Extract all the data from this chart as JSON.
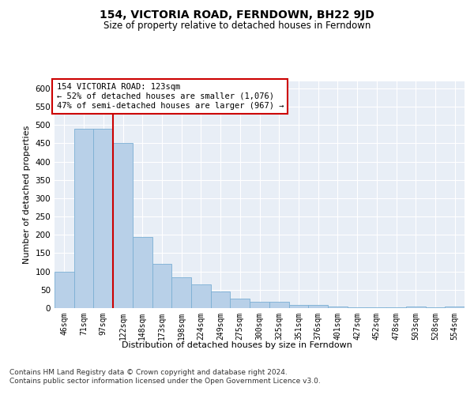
{
  "title": "154, VICTORIA ROAD, FERNDOWN, BH22 9JD",
  "subtitle": "Size of property relative to detached houses in Ferndown",
  "xlabel": "Distribution of detached houses by size in Ferndown",
  "ylabel": "Number of detached properties",
  "categories": [
    "46sqm",
    "71sqm",
    "97sqm",
    "122sqm",
    "148sqm",
    "173sqm",
    "198sqm",
    "224sqm",
    "249sqm",
    "275sqm",
    "300sqm",
    "325sqm",
    "351sqm",
    "376sqm",
    "401sqm",
    "427sqm",
    "452sqm",
    "478sqm",
    "503sqm",
    "528sqm",
    "554sqm"
  ],
  "values": [
    100,
    490,
    490,
    450,
    195,
    120,
    85,
    65,
    45,
    25,
    18,
    18,
    8,
    8,
    5,
    3,
    3,
    3,
    5,
    3,
    5
  ],
  "bar_color": "#b8d0e8",
  "bar_edge_color": "#7bafd4",
  "vline_color": "#cc0000",
  "annotation_text": "154 VICTORIA ROAD: 123sqm\n← 52% of detached houses are smaller (1,076)\n47% of semi-detached houses are larger (967) →",
  "annotation_box_color": "white",
  "annotation_box_edge_color": "#cc0000",
  "background_color": "#e8eef6",
  "footer_text": "Contains HM Land Registry data © Crown copyright and database right 2024.\nContains public sector information licensed under the Open Government Licence v3.0.",
  "ylim": [
    0,
    620
  ],
  "yticks": [
    0,
    50,
    100,
    150,
    200,
    250,
    300,
    350,
    400,
    450,
    500,
    550,
    600
  ],
  "title_fontsize": 10,
  "subtitle_fontsize": 8.5,
  "ylabel_fontsize": 8,
  "xtick_fontsize": 7,
  "ytick_fontsize": 7.5,
  "annotation_fontsize": 7.5,
  "xlabel_fontsize": 8,
  "footer_fontsize": 6.5
}
